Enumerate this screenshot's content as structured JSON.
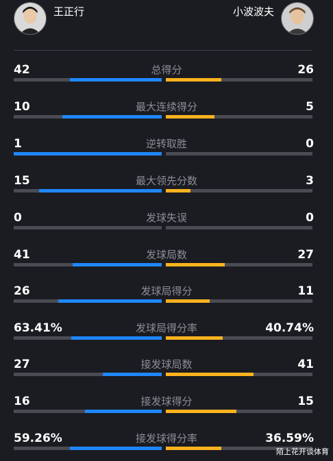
{
  "players": {
    "left": {
      "name": "王正行"
    },
    "right": {
      "name": "小波波夫"
    }
  },
  "colors": {
    "left": "#1f87ff",
    "right": "#ffb31f",
    "track": "#4a4c53"
  },
  "stats": [
    {
      "label": "总得分",
      "left": "42",
      "right": "26",
      "left_share": 0.62,
      "right_share": 0.38
    },
    {
      "label": "最大连续得分",
      "left": "10",
      "right": "5",
      "left_share": 0.67,
      "right_share": 0.33
    },
    {
      "label": "逆转取胜",
      "left": "1",
      "right": "0",
      "left_share": 1.0,
      "right_share": 0.0
    },
    {
      "label": "最大领先分数",
      "left": "15",
      "right": "3",
      "left_share": 0.83,
      "right_share": 0.17
    },
    {
      "label": "发球失误",
      "left": "0",
      "right": "0",
      "left_share": 0.0,
      "right_share": 0.0
    },
    {
      "label": "发球局数",
      "left": "41",
      "right": "27",
      "left_share": 0.6,
      "right_share": 0.4
    },
    {
      "label": "发球局得分",
      "left": "26",
      "right": "11",
      "left_share": 0.7,
      "right_share": 0.3
    },
    {
      "label": "发球局得分率",
      "left": "63.41%",
      "right": "40.74%",
      "left_share": 0.61,
      "right_share": 0.39
    },
    {
      "label": "接发球局数",
      "left": "27",
      "right": "41",
      "left_share": 0.4,
      "right_share": 0.6
    },
    {
      "label": "接发球得分",
      "left": "16",
      "right": "15",
      "left_share": 0.52,
      "right_share": 0.48
    },
    {
      "label": "接发球得分率",
      "left": "59.26%",
      "right": "36.59%",
      "left_share": 0.62,
      "right_share": 0.38
    }
  ],
  "watermark": "陌上花开谈体育"
}
